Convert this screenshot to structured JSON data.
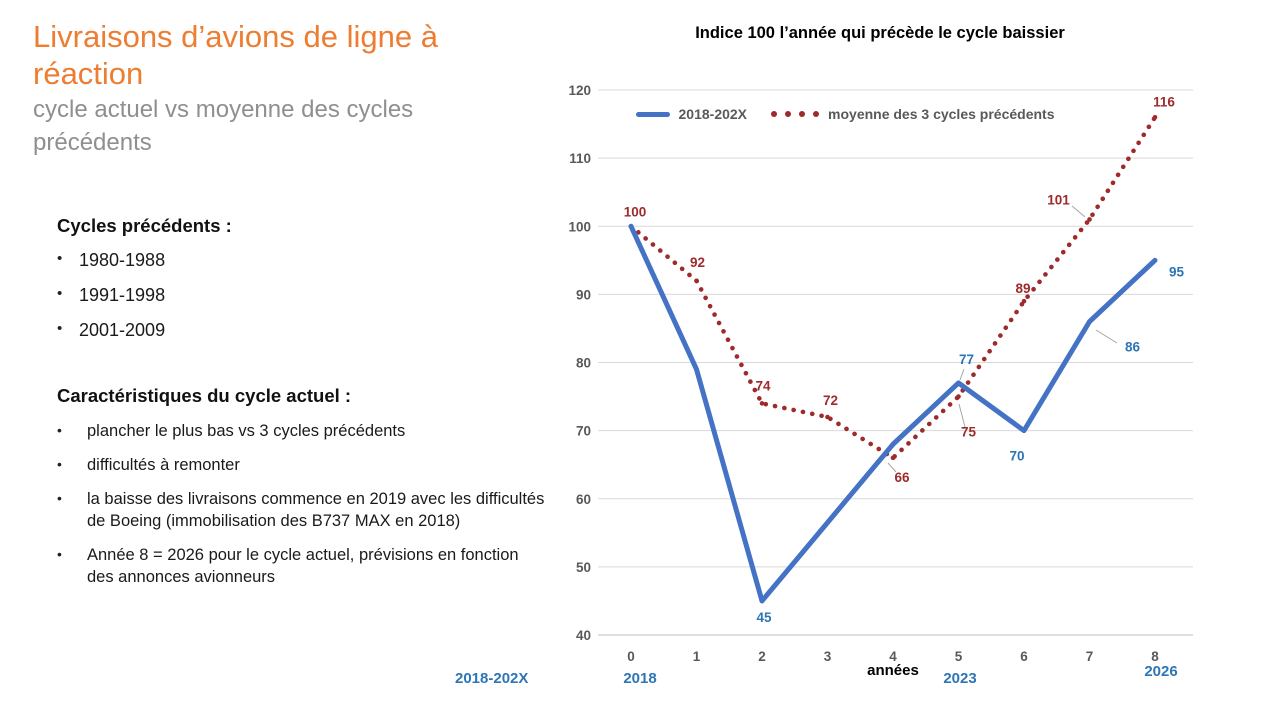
{
  "slide": {
    "title": "Livraisons d’avions de ligne à réaction",
    "subtitle": "cycle actuel vs moyenne des cycles précédents",
    "sections": [
      {
        "heading": "Cycles précédents :",
        "bullets": [
          "1980-1988",
          "1991-1998",
          "2001-2009"
        ]
      },
      {
        "heading": "Caractéristiques du cycle actuel :",
        "bullets": [
          "plancher le plus bas vs 3 cycles précédents",
          "difficultés à remonter",
          "la baisse des livraisons commence en 2019 avec les difficultés de Boeing (immobilisation des B737 MAX en 2018)",
          "Année 8 = 2026 pour le cycle actuel, prévisions en fonction des annonces avionneurs"
        ]
      }
    ]
  },
  "chart_data": {
    "type": "line",
    "title": "Indice 100 l’année qui précède le cycle baissier",
    "xlabel": "années",
    "x": [
      0,
      1,
      2,
      3,
      4,
      5,
      6,
      7,
      8
    ],
    "x_tick_labels": [
      "0",
      "1",
      "2",
      "3",
      "4",
      "5",
      "6",
      "7",
      "8"
    ],
    "ylim": [
      40,
      120
    ],
    "y_ticks": [
      40,
      50,
      60,
      70,
      80,
      90,
      100,
      110,
      120
    ],
    "grid": true,
    "legend_position": "top-inside",
    "series": [
      {
        "name": "2018-202X",
        "style": "solid",
        "color": "#4472C4",
        "label_color": "#2E75B6",
        "values": [
          100,
          79,
          45,
          56.5,
          68,
          77,
          70,
          86,
          95
        ],
        "point_labels": {
          "2": "45",
          "5": "77",
          "6": "70",
          "7": "86",
          "8": "95"
        }
      },
      {
        "name": "moyenne des 3 cycles précédents",
        "style": "dotted",
        "color": "#9E2A2B",
        "label_color": "#9E2A2B",
        "values": [
          100,
          92,
          74,
          72,
          66,
          75,
          89,
          101,
          116
        ],
        "point_labels": {
          "0": "100",
          "1": "92",
          "2": "74",
          "3": "72",
          "4": "66",
          "5": "75",
          "6": "89",
          "7": "101",
          "8": "116"
        }
      }
    ],
    "timeline_annotations": {
      "left": "2018-202X",
      "year_start": "2018",
      "year_mid": "2023",
      "year_end": "2026"
    }
  },
  "colors": {
    "title_orange": "#ED7D31",
    "subtitle_gray": "#8F8F8F",
    "axis_text": "#595959",
    "gridline": "#D9D9D9",
    "blue_line": "#4472C4",
    "blue_label": "#2E75B6",
    "red": "#9E2A2B",
    "leader_gray": "#A6A6A6"
  }
}
